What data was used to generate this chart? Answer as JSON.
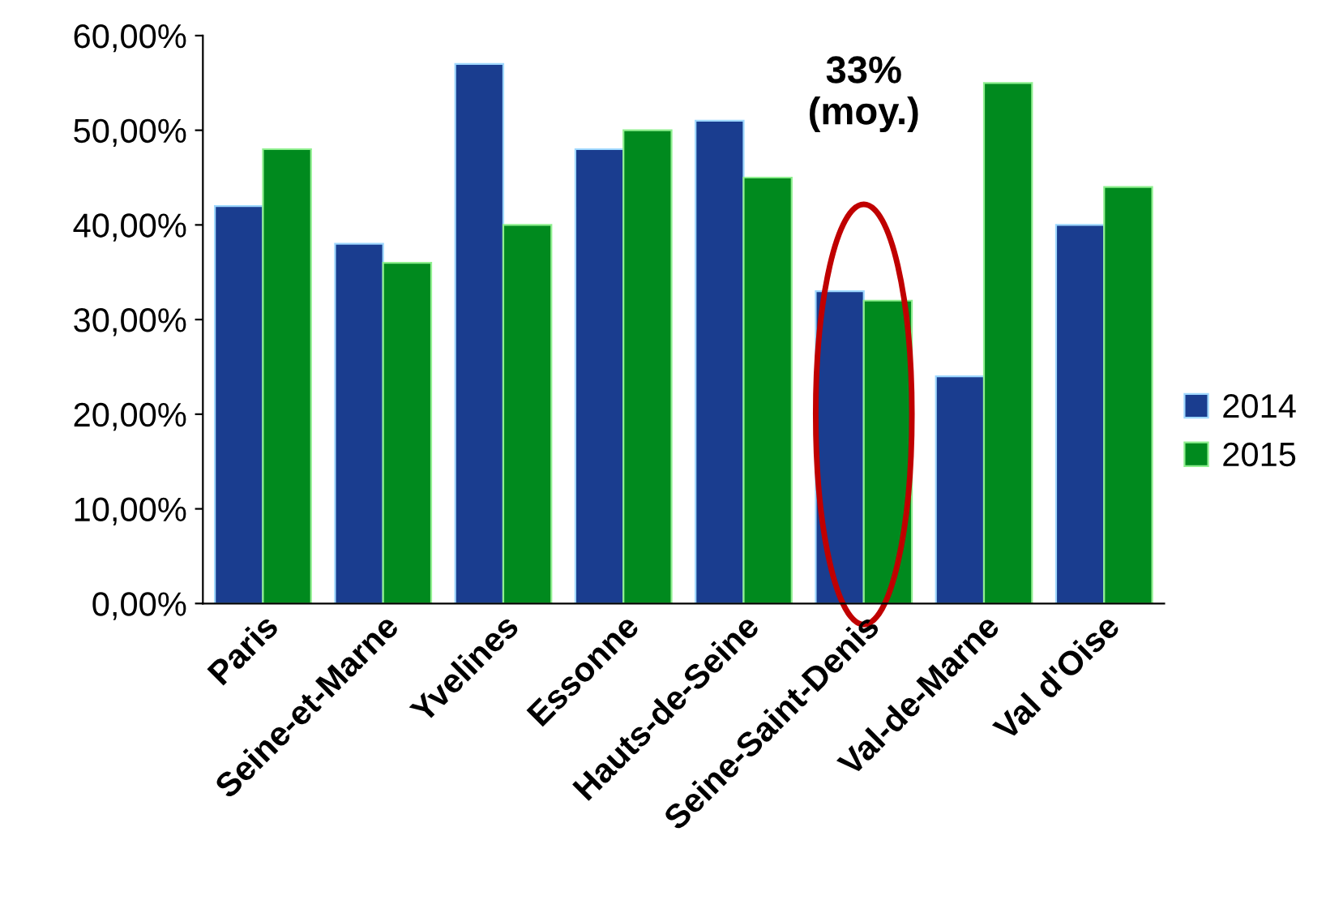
{
  "chart_data": {
    "type": "bar",
    "categories": [
      "Paris",
      "Seine-et-Marne",
      "Yvelines",
      "Essonne",
      "Hauts-de-Seine",
      "Seine-Saint-Denis",
      "Val-de-Marne",
      "Val d'Oise"
    ],
    "series": [
      {
        "name": "2014",
        "color": "#1a3d8f",
        "values": [
          0.42,
          0.38,
          0.57,
          0.48,
          0.51,
          0.33,
          0.24,
          0.4
        ]
      },
      {
        "name": "2015",
        "color": "#008a1e",
        "values": [
          0.48,
          0.36,
          0.4,
          0.5,
          0.45,
          0.32,
          0.55,
          0.44
        ]
      }
    ],
    "ylim": [
      0,
      0.6
    ],
    "yticks": [
      {
        "value": 0,
        "label": "0,00%"
      },
      {
        "value": 0.1,
        "label": "10,00%"
      },
      {
        "value": 0.2,
        "label": "20,00%"
      },
      {
        "value": 0.3,
        "label": "30,00%"
      },
      {
        "value": 0.4,
        "label": "40,00%"
      },
      {
        "value": 0.5,
        "label": "50,00%"
      },
      {
        "value": 0.6,
        "label": "60,00%"
      }
    ],
    "annotations": [
      "33%\n(moy.)"
    ],
    "grid": false,
    "legend": "right"
  }
}
